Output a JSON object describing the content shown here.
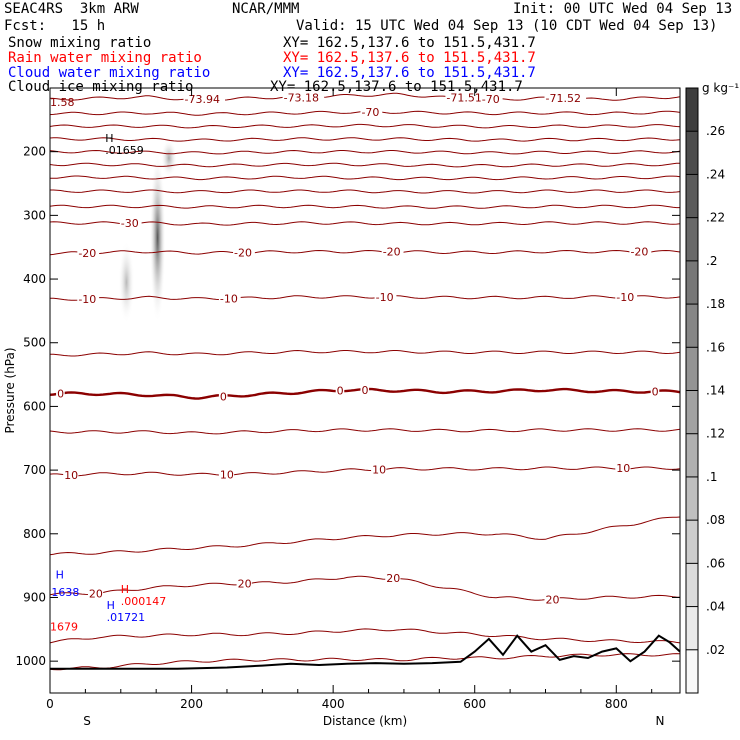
{
  "header": {
    "left_title": "SEAC4RS  3km ARW",
    "center_title": "NCAR/MMM",
    "init": "Init: 00 UTC Wed 04 Sep 13",
    "fcst": "Fcst:   15 h",
    "valid": "Valid: 15 UTC Wed 04 Sep 13 (10 CDT Wed 04 Sep 13)",
    "fields": [
      {
        "name": "Snow mixing ratio",
        "xy": "XY= 162.5,137.6 to 151.5,431.7",
        "color": "#000000"
      },
      {
        "name": "Rain water mixing ratio",
        "xy": "XY= 162.5,137.6 to 151.5,431.7",
        "color": "#ff0000"
      },
      {
        "name": "Cloud water mixing ratio",
        "xy": "XY= 162.5,137.6 to 151.5,431.7",
        "color": "#0000ff"
      },
      {
        "name": "Cloud ice mixing ratio",
        "xy": "XY= 162.5,137.6 to 151.5,431.7",
        "color": "#000000"
      }
    ]
  },
  "chart_data": {
    "type": "cross-section",
    "xlabel": "Distance (km)",
    "ylabel": "Pressure (hPa)",
    "x_ticks": [
      0,
      200,
      400,
      600,
      800
    ],
    "y_ticks": [
      200,
      300,
      400,
      500,
      600,
      700,
      800,
      900,
      1000
    ],
    "xlim": [
      0,
      890
    ],
    "ylim": [
      1050,
      100
    ],
    "left_end_label": "S",
    "right_end_label": "N",
    "colorbar": {
      "unit": "g kg⁻¹",
      "ticks": [
        ".02",
        ".04",
        ".06",
        ".08",
        ".1",
        ".12",
        ".14",
        ".16",
        ".18",
        ".2",
        ".22",
        ".24",
        ".26"
      ],
      "tick_values": [
        0.02,
        0.04,
        0.06,
        0.08,
        0.1,
        0.12,
        0.14,
        0.16,
        0.18,
        0.2,
        0.22,
        0.24,
        0.26
      ],
      "max": 0.28
    },
    "temperature_contours": [
      {
        "p": [
          118,
          116,
          114,
          119,
          116,
          114,
          112,
          110,
          115,
          118,
          116,
          118,
          114
        ],
        "labels": [
          {
            "x": 190,
            "t": "-73.94"
          },
          {
            "x": 330,
            "t": "-73.18"
          },
          {
            "x": 560,
            "t": "-71.51"
          },
          {
            "x": 610,
            "t": "-70"
          },
          {
            "x": 700,
            "t": "-71.52"
          }
        ]
      },
      {
        "p": [
          140,
          140,
          139,
          141,
          140,
          139,
          138,
          138,
          139,
          140,
          139,
          140,
          138
        ],
        "labels": [
          {
            "x": 440,
            "t": "-70"
          }
        ]
      },
      {
        "p": [
          160,
          160,
          160,
          161,
          160,
          160,
          159,
          159,
          160,
          161,
          160,
          160,
          159
        ],
        "labels": []
      },
      {
        "p": [
          180,
          180,
          181,
          182,
          181,
          180,
          180,
          180,
          181,
          182,
          181,
          181,
          180
        ],
        "labels": []
      },
      {
        "p": [
          200,
          200,
          201,
          202,
          201,
          200,
          200,
          200,
          201,
          202,
          201,
          201,
          200
        ],
        "labels": []
      },
      {
        "p": [
          220,
          220,
          221,
          222,
          221,
          220,
          220,
          221,
          222,
          222,
          221,
          221,
          220
        ],
        "labels": []
      },
      {
        "p": [
          240,
          240,
          241,
          242,
          241,
          240,
          241,
          242,
          242,
          242,
          241,
          241,
          240
        ],
        "labels": []
      },
      {
        "p": [
          262,
          262,
          262,
          263,
          262,
          262,
          262,
          263,
          263,
          263,
          262,
          262,
          262
        ],
        "labels": []
      },
      {
        "p": [
          286,
          286,
          286,
          287,
          286,
          286,
          286,
          287,
          287,
          287,
          286,
          286,
          286
        ],
        "labels": []
      },
      {
        "p": [
          312,
          312,
          312,
          314,
          313,
          312,
          312,
          313,
          313,
          313,
          312,
          312,
          312
        ],
        "labels": [
          {
            "x": 100,
            "t": "-30"
          }
        ]
      },
      {
        "p": [
          360,
          358,
          357,
          359,
          358,
          357,
          357,
          357,
          358,
          358,
          357,
          357,
          357
        ],
        "labels": [
          {
            "x": 40,
            "t": "-20"
          },
          {
            "x": 260,
            "t": "-20"
          },
          {
            "x": 470,
            "t": "-20"
          },
          {
            "x": 820,
            "t": "-20"
          }
        ]
      },
      {
        "p": [
          432,
          431,
          429,
          431,
          430,
          428,
          428,
          428,
          429,
          429,
          429,
          428,
          428
        ],
        "labels": [
          {
            "x": 40,
            "t": "-10"
          },
          {
            "x": 240,
            "t": "-10"
          },
          {
            "x": 460,
            "t": "-10"
          },
          {
            "x": 800,
            "t": "-10"
          }
        ]
      },
      {
        "p": [
          520,
          518,
          516,
          518,
          516,
          514,
          514,
          514,
          515,
          515,
          515,
          515,
          515
        ],
        "labels": []
      },
      {
        "p": [
          580,
          580,
          582,
          586,
          582,
          578,
          574,
          575,
          577,
          576,
          574,
          576,
          577
        ],
        "labels": [
          {
            "x": 10,
            "t": "0"
          },
          {
            "x": 240,
            "t": "0"
          },
          {
            "x": 405,
            "t": "0"
          },
          {
            "x": 440,
            "t": "0"
          },
          {
            "x": 850,
            "t": "0"
          }
        ],
        "bold": true
      },
      {
        "p": [
          640,
          640,
          640,
          642,
          640,
          638,
          637,
          637,
          638,
          638,
          637,
          637,
          637
        ],
        "labels": []
      },
      {
        "p": [
          708,
          706,
          705,
          707,
          706,
          703,
          700,
          698,
          698,
          698,
          697,
          697,
          697
        ],
        "labels": [
          {
            "x": 20,
            "t": "10"
          },
          {
            "x": 240,
            "t": "10"
          },
          {
            "x": 455,
            "t": "10"
          },
          {
            "x": 800,
            "t": "10"
          }
        ]
      },
      {
        "p": [
          832,
          830,
          826,
          822,
          818,
          812,
          806,
          802,
          800,
          800,
          808,
          793,
          772
        ],
        "labels": []
      },
      {
        "p": [
          895,
          893,
          885,
          880,
          878,
          875,
          868,
          870,
          885,
          900,
          903,
          900,
          898
        ],
        "labels": [
          {
            "x": 55,
            "t": "20"
          },
          {
            "x": 265,
            "t": "20"
          },
          {
            "x": 475,
            "t": "20"
          },
          {
            "x": 700,
            "t": "20"
          }
        ]
      },
      {
        "p": [
          970,
          962,
          960,
          958,
          958,
          956,
          952,
          950,
          955,
          960,
          965,
          968,
          970
        ],
        "labels": []
      },
      {
        "p": [
          1012,
          1010,
          1004,
          1000,
          998,
          998,
          997,
          998,
          995,
          995,
          992,
          990,
          990
        ],
        "labels": []
      }
    ],
    "contour_x": [
      0,
      70,
      140,
      210,
      280,
      350,
      420,
      490,
      560,
      630,
      700,
      780,
      890
    ],
    "terrain_p": [
      1012,
      1012,
      1012,
      1012,
      1010,
      1007,
      1004,
      1006,
      1004,
      1003,
      1004,
      1003,
      1001,
      985,
      965,
      990,
      960,
      985,
      975,
      998,
      992,
      995,
      985,
      980,
      1000,
      985,
      960,
      970,
      985
    ],
    "terrain_x": [
      0,
      60,
      120,
      180,
      250,
      300,
      340,
      380,
      420,
      460,
      500,
      540,
      580,
      600,
      620,
      640,
      660,
      680,
      700,
      720,
      740,
      760,
      780,
      800,
      820,
      840,
      860,
      875,
      890
    ],
    "hydrometeor_columns": [
      {
        "x": 108,
        "p_top": 340,
        "p_bottom": 470,
        "peak": 0.1
      },
      {
        "x": 152,
        "p_top": 200,
        "p_bottom": 470,
        "peak": 0.24
      },
      {
        "x": 168,
        "p_top": 180,
        "p_bottom": 240,
        "peak": 0.12
      }
    ],
    "annotations": [
      {
        "x": 78,
        "p": 185,
        "lines": [
          "H",
          ".01659"
        ],
        "color": "#000000"
      },
      {
        "x": 2,
        "p": 898,
        "lines": [
          "1638"
        ],
        "color": "#0000ff"
      },
      {
        "x": 8,
        "p": 870,
        "lines": [
          "H"
        ],
        "color": "#0000ff"
      },
      {
        "x": 0,
        "p": 952,
        "lines": [
          "1679"
        ],
        "color": "#ff0000"
      },
      {
        "x": 100,
        "p": 893,
        "lines": [
          "H",
          ".000147"
        ],
        "color": "#ff0000"
      },
      {
        "x": 80,
        "p": 918,
        "lines": [
          "H",
          ".01721"
        ],
        "color": "#0000ff"
      },
      {
        "x": 0,
        "p": 128,
        "lines": [
          "1.58"
        ],
        "color": "#8b0000"
      }
    ]
  }
}
